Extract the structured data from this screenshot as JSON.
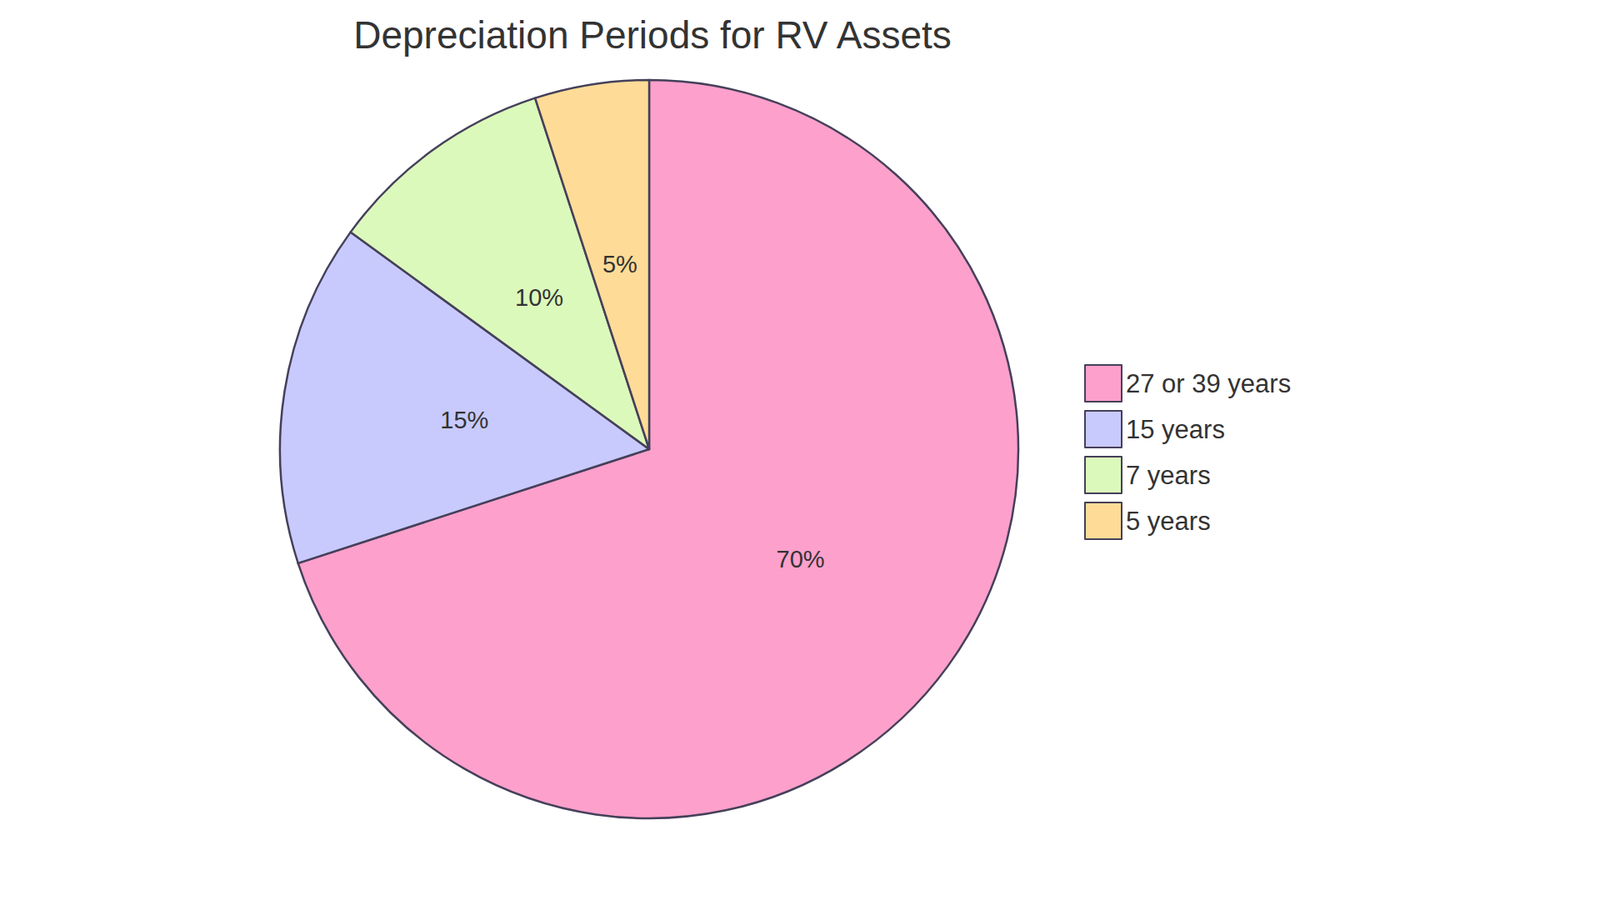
{
  "chart_data": {
    "type": "pie",
    "title": "Depreciation Periods for RV Assets",
    "categories": [
      "27 or 39 years",
      "15 years",
      "7 years",
      "5 years"
    ],
    "values": [
      70,
      15,
      10,
      5
    ],
    "value_labels": [
      "70%",
      "15%",
      "10%",
      "5%"
    ],
    "colors": [
      "#fea0cc",
      "#c8cafd",
      "#dcf9bc",
      "#fedc97"
    ],
    "data_labels": true,
    "legend": "right"
  }
}
